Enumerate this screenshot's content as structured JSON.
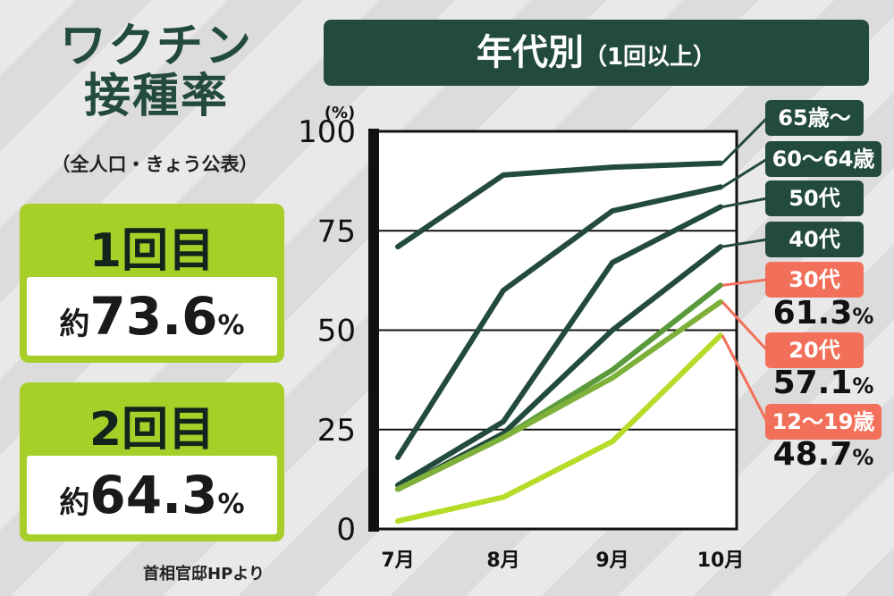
{
  "header": {
    "title_line1": "ワクチン",
    "title_line2": "接種率",
    "subtitle": "（全人口・きょう公表）"
  },
  "doses": [
    {
      "label": "1回目",
      "prefix": "約",
      "value": "73.6",
      "unit": "%"
    },
    {
      "label": "2回目",
      "prefix": "約",
      "value": "64.3",
      "unit": "%"
    }
  ],
  "source": "首相官邸HPより",
  "colors": {
    "dark_green": "#234a3e",
    "mid_green": "#5a9a3c",
    "lime": "#a6cf28",
    "salmon": "#f2705a"
  },
  "chart_data": {
    "type": "line",
    "title": "年代別",
    "title_suffix": "（1回以上）",
    "y_unit": "(%)",
    "ylim": [
      0,
      100
    ],
    "yticks": [
      0,
      25,
      50,
      75,
      100
    ],
    "ytick_labels": [
      "0",
      "25",
      "50",
      "75",
      "100"
    ],
    "categories": [
      "7月",
      "8月",
      "9月",
      "10月"
    ],
    "grid": true,
    "series": [
      {
        "name": "65歳〜",
        "values": [
          71,
          89,
          91,
          92
        ],
        "color": "#234a3e",
        "style": "dark"
      },
      {
        "name": "60〜64歳",
        "values": [
          18,
          60,
          80,
          86
        ],
        "color": "#234a3e",
        "style": "dark"
      },
      {
        "name": "50代",
        "values": [
          11,
          27,
          67,
          81
        ],
        "color": "#234a3e",
        "style": "dark"
      },
      {
        "name": "40代",
        "values": [
          10,
          24,
          50,
          71
        ],
        "color": "#234a3e",
        "style": "dark"
      },
      {
        "name": "30代",
        "values": [
          10,
          23,
          40,
          61.3
        ],
        "color": "#5a9a3c",
        "style": "salmon",
        "value_label": "61.3"
      },
      {
        "name": "20代",
        "values": [
          10,
          23,
          38,
          57.1
        ],
        "color": "#7fb03a",
        "style": "salmon",
        "value_label": "57.1"
      },
      {
        "name": "12〜19歳",
        "values": [
          2,
          8,
          22,
          48.7
        ],
        "color": "#b4dc28",
        "style": "salmon",
        "value_label": "48.7"
      }
    ]
  }
}
